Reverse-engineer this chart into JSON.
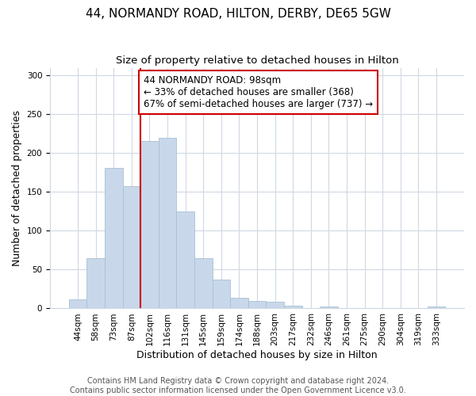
{
  "title": "44, NORMANDY ROAD, HILTON, DERBY, DE65 5GW",
  "subtitle": "Size of property relative to detached houses in Hilton",
  "xlabel": "Distribution of detached houses by size in Hilton",
  "ylabel": "Number of detached properties",
  "bar_color": "#c8d8ea",
  "bar_edge_color": "#a8c0d6",
  "categories": [
    "44sqm",
    "58sqm",
    "73sqm",
    "87sqm",
    "102sqm",
    "116sqm",
    "131sqm",
    "145sqm",
    "159sqm",
    "174sqm",
    "188sqm",
    "203sqm",
    "217sqm",
    "232sqm",
    "246sqm",
    "261sqm",
    "275sqm",
    "290sqm",
    "304sqm",
    "319sqm",
    "333sqm"
  ],
  "values": [
    12,
    65,
    181,
    158,
    216,
    220,
    125,
    65,
    37,
    14,
    10,
    9,
    4,
    0,
    3,
    0,
    0,
    0,
    0,
    0,
    2
  ],
  "vline_x_idx": 4,
  "vline_color": "#cc0000",
  "annotation_line1": "44 NORMANDY ROAD: 98sqm",
  "annotation_line2": "← 33% of detached houses are smaller (368)",
  "annotation_line3": "67% of semi-detached houses are larger (737) →",
  "annotation_box_edgecolor": "#cc0000",
  "annotation_box_facecolor": "#ffffff",
  "ylim": [
    0,
    310
  ],
  "yticks": [
    0,
    50,
    100,
    150,
    200,
    250,
    300
  ],
  "footer_line1": "Contains HM Land Registry data © Crown copyright and database right 2024.",
  "footer_line2": "Contains public sector information licensed under the Open Government Licence v3.0.",
  "background_color": "#ffffff",
  "grid_color": "#d0d8e4",
  "title_fontsize": 11,
  "subtitle_fontsize": 9.5,
  "axis_label_fontsize": 9,
  "tick_fontsize": 7.5,
  "annotation_fontsize": 8.5,
  "footer_fontsize": 7
}
